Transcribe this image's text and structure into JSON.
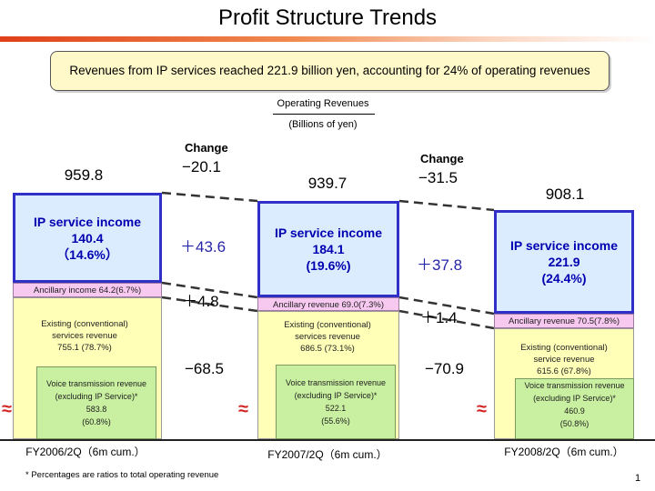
{
  "title": "Profit Structure Trends",
  "headline": "Revenues from IP services reached 221.9 billion yen, accounting for 24% of operating revenues",
  "legend": {
    "operating_revenues": "Operating Revenues",
    "units": "(Billions of yen)"
  },
  "change_heading": "Change",
  "changes": [
    {
      "total": "−20.1",
      "ip": "＋43.6",
      "ancillary": "＋4.8",
      "voice": "−68.5"
    },
    {
      "total": "−31.5",
      "ip": "＋37.8",
      "ancillary": "＋1.4",
      "voice": "−70.9"
    }
  ],
  "bars": [
    {
      "period": "FY2006/2Q（6m cum.）",
      "total": "959.8",
      "ip_line1": "IP service income",
      "ip_line2": "140.4",
      "ip_line3": "（14.6%）",
      "ancillary": "Ancillary income 64.2(6.7%)",
      "existing_line1": "Existing (conventional)",
      "existing_line2": "services revenue",
      "existing_line3": "755.1 (78.7%)",
      "voice_line1": "Voice transmission revenue",
      "voice_line2": "(excluding IP Service)*",
      "voice_line3": "583.8",
      "voice_line4": "(60.8%)"
    },
    {
      "period": "FY2007/2Q（6m cum.）",
      "total": "939.7",
      "ip_line1": "IP service income",
      "ip_line2": "184.1",
      "ip_line3": "(19.6%)",
      "ancillary": "Ancillary revenue 69.0(7.3%)",
      "existing_line1": "Existing (conventional)",
      "existing_line2": "services revenue",
      "existing_line3": "686.5 (73.1%)",
      "voice_line1": "Voice transmission revenue",
      "voice_line2": "(excluding IP Service)*",
      "voice_line3": "522.1",
      "voice_line4": "(55.6%)"
    },
    {
      "period": "FY2008/2Q（6m cum.）",
      "total": "908.1",
      "ip_line1": "IP service income",
      "ip_line2": "221.9",
      "ip_line3": "(24.4%)",
      "ancillary": "Ancillary revenue  70.5(7.8%)",
      "existing_line1": "Existing (conventional)",
      "existing_line2": "service revenue",
      "existing_line3": "615.6  (67.8%)",
      "voice_line1": "Voice transmission revenue",
      "voice_line2": "(excluding IP Service)*",
      "voice_line3": "460.9",
      "voice_line4": "(50.8%)"
    }
  ],
  "footnote": "* Percentages are ratios to total operating revenue",
  "page_number": "1",
  "colors": {
    "ip_border": "#3030c8",
    "ip_fill": "#dcecff",
    "ancillary": "#f7c8f0",
    "existing": "#ffffb8",
    "voice": "#c8f0a0",
    "accent": "#e0401a"
  },
  "chart_data": {
    "type": "bar",
    "stacked": true,
    "axis_break": true,
    "ylabel": "Operating Revenues",
    "units": "(Billions of yen)",
    "categories": [
      "FY2006/2Q（6m cum.）",
      "FY2007/2Q（6m cum.）",
      "FY2008/2Q（6m cum.）"
    ],
    "totals": [
      959.8,
      939.7,
      908.1
    ],
    "series": [
      {
        "name": "Existing (conventional) services revenue",
        "values": [
          755.1,
          686.5,
          615.6
        ],
        "shares_pct": [
          78.7,
          73.1,
          67.8
        ]
      },
      {
        "name": "Ancillary income",
        "values": [
          64.2,
          69.0,
          70.5
        ],
        "shares_pct": [
          6.7,
          7.3,
          7.8
        ]
      },
      {
        "name": "IP service income",
        "values": [
          140.4,
          184.1,
          221.9
        ],
        "shares_pct": [
          14.6,
          19.6,
          24.4
        ]
      }
    ],
    "sub_series": {
      "name": "Voice transmission revenue (excluding IP Service)",
      "values": [
        583.8,
        522.1,
        460.9
      ],
      "shares_pct": [
        60.8,
        55.6,
        50.8
      ]
    },
    "changes": [
      {
        "total": -20.1,
        "ip": 43.6,
        "ancillary": 4.8,
        "voice": -68.5
      },
      {
        "total": -31.5,
        "ip": 37.8,
        "ancillary": 1.4,
        "voice": -70.9
      }
    ]
  }
}
